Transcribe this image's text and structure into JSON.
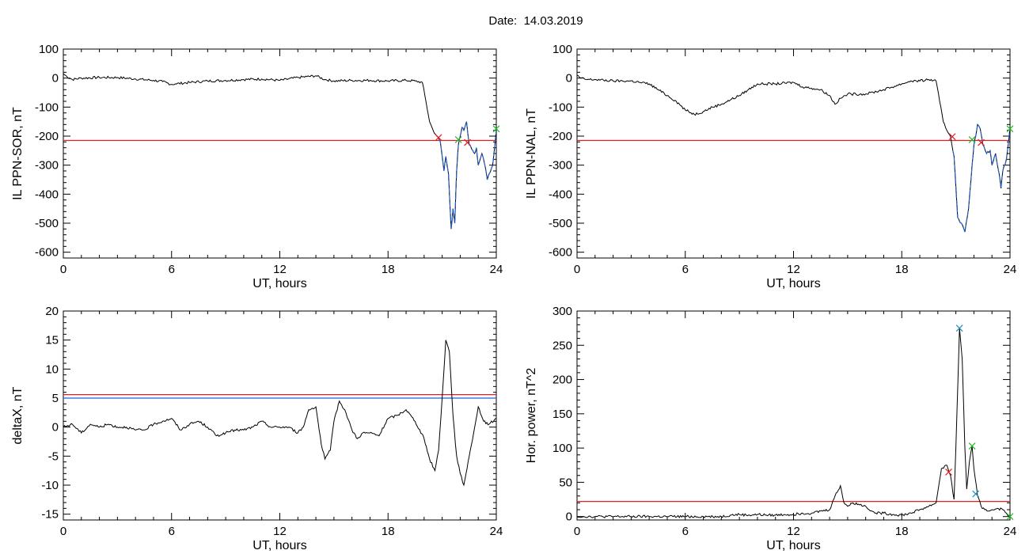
{
  "header": {
    "date_label": "Date:",
    "date_value": "14.03.2019"
  },
  "colors": {
    "curve": "#000000",
    "highlight": "#1f5fd6",
    "threshold_red": "#e02020",
    "threshold_blue": "#1f5fd6",
    "marker_red": "#e02020",
    "marker_green": "#22bb22",
    "marker_blue": "#1f8fbf"
  },
  "chart_data": [
    {
      "id": "sor",
      "type": "line",
      "xlabel": "UT, hours",
      "ylabel": "IL PPN-SOR, nT",
      "xlim": [
        0,
        24
      ],
      "ylim": [
        -620,
        100
      ],
      "xticks": [
        0,
        6,
        12,
        18,
        24
      ],
      "yticks": [
        100,
        0,
        -100,
        -200,
        -300,
        -400,
        -500,
        -600
      ],
      "grid": false,
      "threshold_lines": [
        {
          "y": -215,
          "color": "red"
        }
      ],
      "highlight_range": [
        20.8,
        24
      ],
      "series": [
        {
          "x": [
            0,
            0.2,
            0.5,
            1,
            2,
            3,
            4,
            5,
            5.5,
            6,
            6.2,
            7,
            8,
            9,
            10,
            11,
            12,
            13,
            13.5,
            14,
            14.5,
            15,
            16,
            17,
            18,
            19,
            19.5,
            19.9,
            20.1,
            20.3,
            20.5,
            20.7,
            20.9,
            21.1,
            21.2,
            21.35,
            21.5,
            21.6,
            21.7,
            21.8,
            21.9,
            22.0,
            22.1,
            22.2,
            22.35,
            22.5,
            22.7,
            22.8,
            22.9,
            23.0,
            23.2,
            23.4,
            23.5,
            23.6,
            23.8,
            24
          ],
          "y": [
            15,
            5,
            -5,
            0,
            2,
            2,
            -3,
            -8,
            -12,
            -22,
            -20,
            -15,
            -10,
            -8,
            -5,
            -3,
            -8,
            2,
            5,
            8,
            -5,
            -10,
            -8,
            -8,
            -10,
            -8,
            -10,
            -15,
            -80,
            -150,
            -180,
            -200,
            -220,
            -320,
            -270,
            -330,
            -520,
            -450,
            -500,
            -320,
            -230,
            -200,
            -170,
            -180,
            -150,
            -230,
            -250,
            -260,
            -240,
            -300,
            -260,
            -310,
            -350,
            -330,
            -300,
            -180
          ]
        }
      ],
      "markers": [
        {
          "x": 20.8,
          "y": -205,
          "color": "red"
        },
        {
          "x": 21.9,
          "y": -212,
          "color": "green"
        },
        {
          "x": 22.4,
          "y": -222,
          "color": "red"
        },
        {
          "x": 24,
          "y": -175,
          "color": "green"
        }
      ]
    },
    {
      "id": "nal",
      "type": "line",
      "xlabel": "UT, hours",
      "ylabel": "IL PPN-NAL, nT",
      "xlim": [
        0,
        24
      ],
      "ylim": [
        -620,
        100
      ],
      "xticks": [
        0,
        6,
        12,
        18,
        24
      ],
      "yticks": [
        100,
        0,
        -100,
        -200,
        -300,
        -400,
        -500,
        -600
      ],
      "grid": false,
      "threshold_lines": [
        {
          "y": -215,
          "color": "red"
        }
      ],
      "highlight_range": [
        20.8,
        24
      ],
      "series": [
        {
          "x": [
            0,
            0.2,
            0.5,
            1,
            2,
            3,
            3.5,
            4,
            4.5,
            5,
            5.5,
            6,
            6.5,
            7,
            7.5,
            8,
            8.5,
            9,
            9.5,
            10,
            11,
            12,
            12.5,
            13,
            13.5,
            14,
            14.3,
            14.6,
            15,
            16,
            17,
            18,
            18.5,
            19,
            19.5,
            19.9,
            20.1,
            20.3,
            20.5,
            20.7,
            20.9,
            21.1,
            21.3,
            21.5,
            21.7,
            21.9,
            22.0,
            22.1,
            22.2,
            22.35,
            22.5,
            22.7,
            22.9,
            23.0,
            23.2,
            23.4,
            23.5,
            23.6,
            23.8,
            24
          ],
          "y": [
            10,
            0,
            -5,
            -5,
            -10,
            -10,
            -15,
            -20,
            -40,
            -60,
            -80,
            -110,
            -125,
            -115,
            -100,
            -90,
            -75,
            -60,
            -40,
            -20,
            -20,
            -15,
            -30,
            -35,
            -40,
            -60,
            -90,
            -70,
            -55,
            -55,
            -40,
            -20,
            -10,
            -10,
            -5,
            -10,
            -80,
            -150,
            -180,
            -200,
            -270,
            -480,
            -500,
            -530,
            -450,
            -300,
            -230,
            -200,
            -160,
            -175,
            -230,
            -260,
            -250,
            -300,
            -260,
            -330,
            -380,
            -320,
            -280,
            -170
          ]
        }
      ],
      "markers": [
        {
          "x": 20.8,
          "y": -202,
          "color": "red"
        },
        {
          "x": 21.9,
          "y": -212,
          "color": "green"
        },
        {
          "x": 22.4,
          "y": -222,
          "color": "red"
        },
        {
          "x": 24,
          "y": -175,
          "color": "green"
        }
      ]
    },
    {
      "id": "deltax",
      "type": "line",
      "xlabel": "UT, hours",
      "ylabel": "deltaX, nT",
      "xlim": [
        0,
        24
      ],
      "ylim": [
        -16,
        20
      ],
      "xticks": [
        0,
        6,
        12,
        18,
        24
      ],
      "yticks": [
        20,
        15,
        10,
        5,
        0,
        -5,
        -10,
        -15
      ],
      "grid": false,
      "threshold_lines": [
        {
          "y": 5.6,
          "color": "red"
        },
        {
          "y": 5.0,
          "color": "blue"
        }
      ],
      "series": [
        {
          "x": [
            0,
            0.5,
            1,
            1.5,
            2,
            2.5,
            3,
            3.5,
            4,
            4.5,
            5,
            5.5,
            6,
            6.5,
            7,
            7.5,
            8,
            8.5,
            9,
            9.5,
            10,
            10.5,
            11,
            11.5,
            12,
            12.5,
            13,
            13.3,
            13.6,
            14,
            14.3,
            14.5,
            14.8,
            15.0,
            15.3,
            15.6,
            16.0,
            16.3,
            16.6,
            17,
            17.5,
            18,
            18.5,
            19,
            19.5,
            20,
            20.3,
            20.6,
            20.8,
            21.0,
            21.2,
            21.4,
            21.6,
            21.8,
            22.0,
            22.2,
            22.5,
            22.8,
            23.0,
            23.3,
            23.6,
            24
          ],
          "y": [
            0,
            0.5,
            -1,
            0.5,
            0,
            0.5,
            0,
            0,
            -0.5,
            -0.5,
            0.5,
            1,
            1.5,
            -0.5,
            0.5,
            1,
            0,
            -1.5,
            -1,
            -0.5,
            -0.5,
            0,
            1,
            0,
            0,
            0,
            -1,
            0,
            3,
            3.5,
            -3,
            -5.5,
            -4,
            1,
            4.5,
            3,
            -0.5,
            -2,
            -1,
            -1,
            -1.5,
            1.5,
            2,
            3,
            1,
            -2,
            -5.5,
            -7.5,
            -4,
            5,
            15,
            13,
            2,
            -5,
            -8,
            -10,
            -5,
            0,
            3.5,
            1,
            0.5,
            1.5
          ]
        }
      ]
    },
    {
      "id": "power",
      "type": "line",
      "xlabel": "UT, hours",
      "ylabel": "Hor. power, nT^2",
      "xlim": [
        0,
        24
      ],
      "ylim": [
        -5,
        300
      ],
      "xticks": [
        0,
        6,
        12,
        18,
        24
      ],
      "yticks": [
        300,
        250,
        200,
        150,
        100,
        50,
        0
      ],
      "grid": false,
      "threshold_lines": [
        {
          "y": 22,
          "color": "red"
        }
      ],
      "series": [
        {
          "x": [
            0,
            1,
            2,
            3,
            4,
            5,
            6,
            7,
            8,
            8.5,
            9,
            9.5,
            10,
            10.5,
            11,
            11.5,
            12,
            12.5,
            13,
            13.5,
            14,
            14.3,
            14.6,
            14.8,
            15.0,
            15.3,
            15.6,
            16.0,
            16.5,
            17,
            17.5,
            18,
            18.5,
            19,
            19.5,
            19.9,
            20.2,
            20.5,
            20.7,
            20.9,
            21.0,
            21.2,
            21.35,
            21.5,
            21.6,
            21.75,
            21.9,
            22.0,
            22.2,
            22.4,
            22.6,
            22.8,
            23.0,
            23.3,
            23.6,
            24
          ],
          "y": [
            0,
            0,
            0,
            0,
            0,
            0,
            0,
            0,
            0,
            2,
            3,
            2,
            3,
            2,
            2,
            3,
            3,
            5,
            5,
            8,
            10,
            30,
            45,
            20,
            15,
            20,
            18,
            15,
            5,
            5,
            3,
            2,
            5,
            10,
            15,
            20,
            70,
            75,
            60,
            25,
            100,
            275,
            230,
            100,
            40,
            80,
            103,
            70,
            30,
            15,
            10,
            8,
            10,
            12,
            10,
            0
          ]
        }
      ],
      "markers": [
        {
          "x": 20.6,
          "y": 65,
          "color": "red"
        },
        {
          "x": 21.2,
          "y": 275,
          "color": "blue"
        },
        {
          "x": 21.9,
          "y": 103,
          "color": "green"
        },
        {
          "x": 22.1,
          "y": 33,
          "color": "blue"
        },
        {
          "x": 24,
          "y": 0,
          "color": "green"
        }
      ]
    }
  ]
}
